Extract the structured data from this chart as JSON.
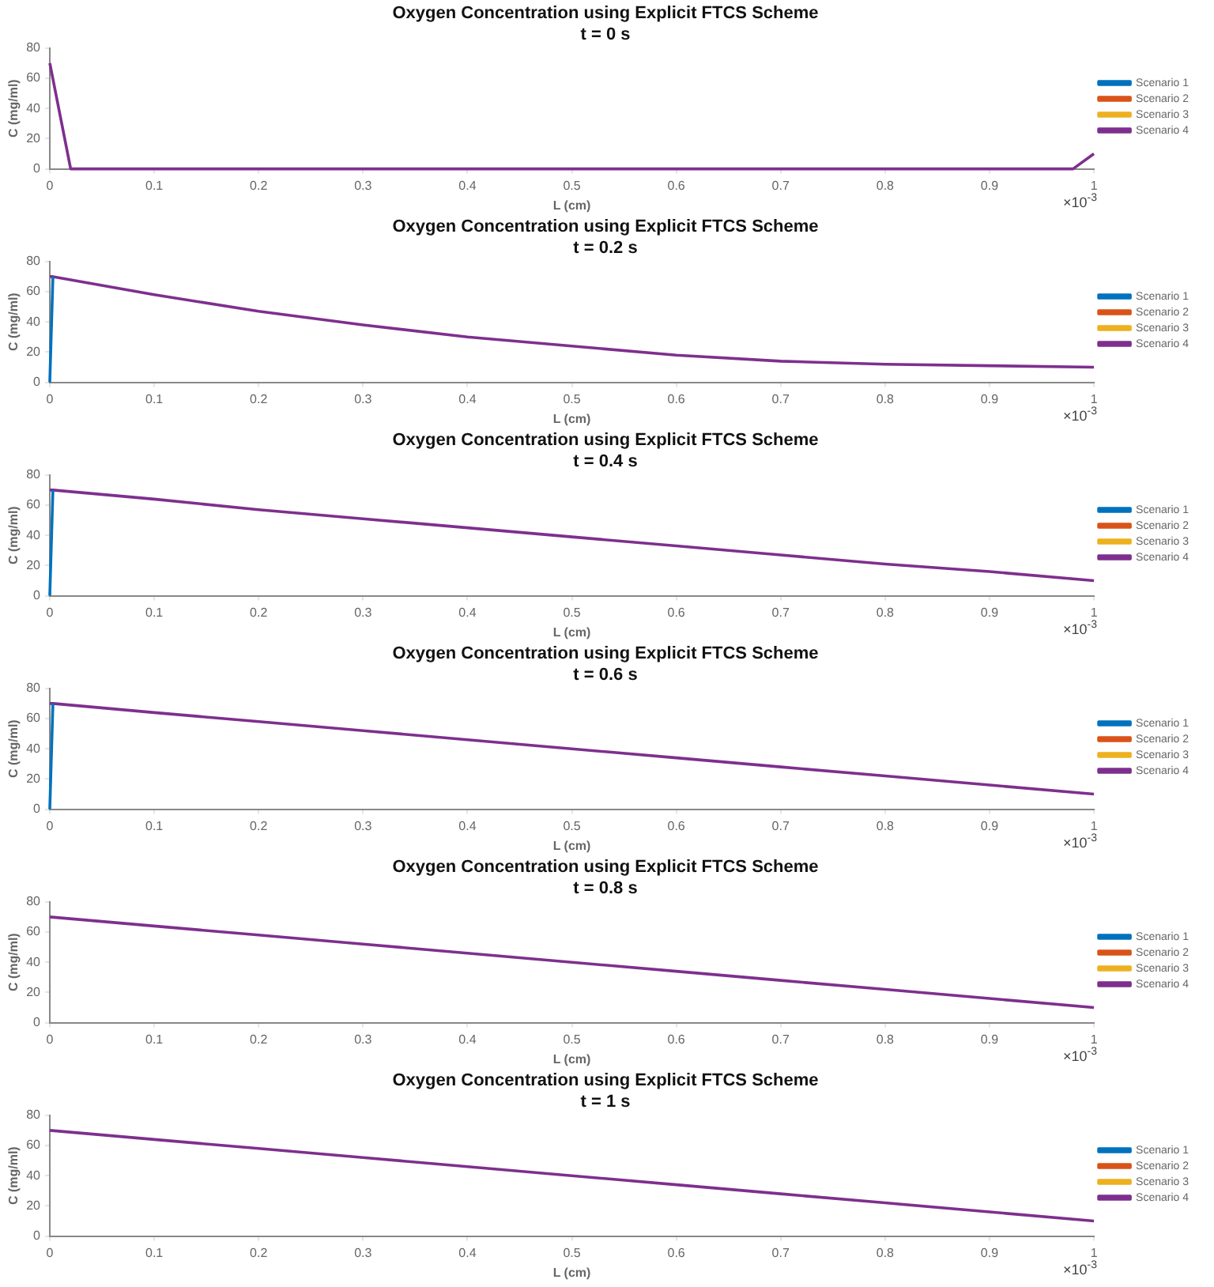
{
  "chart_data": [
    {
      "type": "line",
      "title": "Oxygen Concentration using Explicit FTCS Scheme",
      "subtitle": "t = 0 s",
      "xlabel": "L (cm)",
      "ylabel": "C (mg/ml)",
      "annotations": [
        "×10$^{-3}$"
      ],
      "x": [
        0,
        0.02,
        0.1,
        0.2,
        0.3,
        0.4,
        0.5,
        0.6,
        0.7,
        0.8,
        0.9,
        0.98,
        1
      ],
      "xlim": [
        0,
        1
      ],
      "xticks": [
        0,
        0.1,
        0.2,
        0.3,
        0.4,
        0.5,
        0.6,
        0.7,
        0.8,
        0.9,
        1
      ],
      "ylim": [
        0,
        80
      ],
      "yticks": [
        0,
        20,
        40,
        60,
        80
      ],
      "legend": "right",
      "grid": false,
      "series": [
        {
          "name": "Scenario 1",
          "color": "#0072bd",
          "values": [
            null,
            null,
            null,
            null,
            null,
            null,
            null,
            null,
            null,
            null,
            null,
            null,
            null
          ]
        },
        {
          "name": "Scenario 2",
          "color": "#d95319",
          "values": [
            null,
            null,
            null,
            null,
            null,
            null,
            null,
            null,
            null,
            null,
            null,
            null,
            null
          ]
        },
        {
          "name": "Scenario 3",
          "color": "#edb120",
          "values": [
            null,
            null,
            null,
            null,
            null,
            null,
            null,
            null,
            null,
            null,
            null,
            null,
            null
          ]
        },
        {
          "name": "Scenario 4",
          "color": "#7e2f8e",
          "values": [
            70,
            0,
            0,
            0,
            0,
            0,
            0,
            0,
            0,
            0,
            0,
            0,
            10
          ]
        }
      ]
    },
    {
      "type": "line",
      "title": "Oxygen Concentration using Explicit FTCS Scheme",
      "subtitle": "t = 0.2 s",
      "xlabel": "L (cm)",
      "ylabel": "C (mg/ml)",
      "annotations": [
        "×10$^{-3}$"
      ],
      "x": [
        0,
        0.003,
        0.1,
        0.2,
        0.3,
        0.4,
        0.5,
        0.6,
        0.7,
        0.8,
        0.9,
        1
      ],
      "xlim": [
        0,
        1
      ],
      "xticks": [
        0,
        0.1,
        0.2,
        0.3,
        0.4,
        0.5,
        0.6,
        0.7,
        0.8,
        0.9,
        1
      ],
      "ylim": [
        0,
        80
      ],
      "yticks": [
        0,
        20,
        40,
        60,
        80
      ],
      "legend": "right",
      "grid": false,
      "series": [
        {
          "name": "Scenario 1",
          "color": "#0072bd",
          "values": [
            0,
            70,
            null,
            null,
            null,
            null,
            null,
            null,
            null,
            null,
            null,
            null
          ]
        },
        {
          "name": "Scenario 2",
          "color": "#d95319",
          "values": [
            null,
            null,
            null,
            null,
            null,
            null,
            null,
            null,
            null,
            null,
            null,
            null
          ]
        },
        {
          "name": "Scenario 3",
          "color": "#edb120",
          "values": [
            null,
            null,
            null,
            null,
            null,
            null,
            null,
            null,
            null,
            null,
            null,
            null
          ]
        },
        {
          "name": "Scenario 4",
          "color": "#7e2f8e",
          "values": [
            70,
            70,
            58,
            47,
            38,
            30,
            24,
            18,
            14,
            12,
            11,
            10
          ]
        }
      ]
    },
    {
      "type": "line",
      "title": "Oxygen Concentration using Explicit FTCS Scheme",
      "subtitle": "t = 0.4 s",
      "xlabel": "L (cm)",
      "ylabel": "C (mg/ml)",
      "annotations": [
        "×10$^{-3}$"
      ],
      "x": [
        0,
        0.003,
        0.1,
        0.2,
        0.3,
        0.4,
        0.5,
        0.6,
        0.7,
        0.8,
        0.9,
        1
      ],
      "xlim": [
        0,
        1
      ],
      "xticks": [
        0,
        0.1,
        0.2,
        0.3,
        0.4,
        0.5,
        0.6,
        0.7,
        0.8,
        0.9,
        1
      ],
      "ylim": [
        0,
        80
      ],
      "yticks": [
        0,
        20,
        40,
        60,
        80
      ],
      "legend": "right",
      "grid": false,
      "series": [
        {
          "name": "Scenario 1",
          "color": "#0072bd",
          "values": [
            0,
            70,
            null,
            null,
            null,
            null,
            null,
            null,
            null,
            null,
            null,
            null
          ]
        },
        {
          "name": "Scenario 2",
          "color": "#d95319",
          "values": [
            null,
            null,
            null,
            null,
            null,
            null,
            null,
            null,
            null,
            null,
            null,
            null
          ]
        },
        {
          "name": "Scenario 3",
          "color": "#edb120",
          "values": [
            null,
            null,
            null,
            null,
            null,
            null,
            null,
            null,
            null,
            null,
            null,
            null
          ]
        },
        {
          "name": "Scenario 4",
          "color": "#7e2f8e",
          "values": [
            70,
            70,
            64,
            57,
            51,
            45,
            39,
            33,
            27,
            21,
            16,
            10
          ]
        }
      ]
    },
    {
      "type": "line",
      "title": "Oxygen Concentration using Explicit FTCS Scheme",
      "subtitle": "t = 0.6 s",
      "xlabel": "L (cm)",
      "ylabel": "C (mg/ml)",
      "annotations": [
        "×10$^{-3}$"
      ],
      "x": [
        0,
        0.003,
        0.1,
        0.2,
        0.3,
        0.4,
        0.5,
        0.6,
        0.7,
        0.8,
        0.9,
        1
      ],
      "xlim": [
        0,
        1
      ],
      "xticks": [
        0,
        0.1,
        0.2,
        0.3,
        0.4,
        0.5,
        0.6,
        0.7,
        0.8,
        0.9,
        1
      ],
      "ylim": [
        0,
        80
      ],
      "yticks": [
        0,
        20,
        40,
        60,
        80
      ],
      "legend": "right",
      "grid": false,
      "series": [
        {
          "name": "Scenario 1",
          "color": "#0072bd",
          "values": [
            0,
            70,
            null,
            null,
            null,
            null,
            null,
            null,
            null,
            null,
            null,
            null
          ]
        },
        {
          "name": "Scenario 2",
          "color": "#d95319",
          "values": [
            null,
            null,
            null,
            null,
            null,
            null,
            null,
            null,
            null,
            null,
            null,
            null
          ]
        },
        {
          "name": "Scenario 3",
          "color": "#edb120",
          "values": [
            null,
            null,
            null,
            null,
            null,
            null,
            null,
            null,
            null,
            null,
            null,
            null
          ]
        },
        {
          "name": "Scenario 4",
          "color": "#7e2f8e",
          "values": [
            70,
            70,
            64,
            58,
            52,
            46,
            40,
            34,
            28,
            22,
            16,
            10
          ]
        }
      ]
    },
    {
      "type": "line",
      "title": "Oxygen Concentration using Explicit FTCS Scheme",
      "subtitle": "t = 0.8 s",
      "xlabel": "L (cm)",
      "ylabel": "C (mg/ml)",
      "annotations": [
        "×10$^{-3}$"
      ],
      "x": [
        0,
        0.1,
        0.2,
        0.3,
        0.4,
        0.5,
        0.6,
        0.7,
        0.8,
        0.9,
        1
      ],
      "xlim": [
        0,
        1
      ],
      "xticks": [
        0,
        0.1,
        0.2,
        0.3,
        0.4,
        0.5,
        0.6,
        0.7,
        0.8,
        0.9,
        1
      ],
      "ylim": [
        0,
        80
      ],
      "yticks": [
        0,
        20,
        40,
        60,
        80
      ],
      "legend": "right",
      "grid": false,
      "series": [
        {
          "name": "Scenario 1",
          "color": "#0072bd",
          "values": [
            null,
            null,
            null,
            null,
            null,
            null,
            null,
            null,
            null,
            null,
            null
          ]
        },
        {
          "name": "Scenario 2",
          "color": "#d95319",
          "values": [
            null,
            null,
            null,
            null,
            null,
            null,
            null,
            null,
            null,
            null,
            null
          ]
        },
        {
          "name": "Scenario 3",
          "color": "#edb120",
          "values": [
            null,
            null,
            null,
            null,
            null,
            null,
            null,
            null,
            null,
            null,
            null
          ]
        },
        {
          "name": "Scenario 4",
          "color": "#7e2f8e",
          "values": [
            70,
            64,
            58,
            52,
            46,
            40,
            34,
            28,
            22,
            16,
            10
          ]
        }
      ]
    },
    {
      "type": "line",
      "title": "Oxygen Concentration using Explicit FTCS Scheme",
      "subtitle": "t = 1 s",
      "xlabel": "L (cm)",
      "ylabel": "C (mg/ml)",
      "annotations": [
        "×10$^{-3}$"
      ],
      "x": [
        0,
        0.1,
        0.2,
        0.3,
        0.4,
        0.5,
        0.6,
        0.7,
        0.8,
        0.9,
        1
      ],
      "xlim": [
        0,
        1
      ],
      "xticks": [
        0,
        0.1,
        0.2,
        0.3,
        0.4,
        0.5,
        0.6,
        0.7,
        0.8,
        0.9,
        1
      ],
      "ylim": [
        0,
        80
      ],
      "yticks": [
        0,
        20,
        40,
        60,
        80
      ],
      "legend": "right",
      "grid": false,
      "series": [
        {
          "name": "Scenario 1",
          "color": "#0072bd",
          "values": [
            null,
            null,
            null,
            null,
            null,
            null,
            null,
            null,
            null,
            null,
            null
          ]
        },
        {
          "name": "Scenario 2",
          "color": "#d95319",
          "values": [
            null,
            null,
            null,
            null,
            null,
            null,
            null,
            null,
            null,
            null,
            null
          ]
        },
        {
          "name": "Scenario 3",
          "color": "#edb120",
          "values": [
            null,
            null,
            null,
            null,
            null,
            null,
            null,
            null,
            null,
            null,
            null
          ]
        },
        {
          "name": "Scenario 4",
          "color": "#7e2f8e",
          "values": [
            70,
            64,
            58,
            52,
            46,
            40,
            34,
            28,
            22,
            16,
            10
          ]
        }
      ]
    }
  ]
}
